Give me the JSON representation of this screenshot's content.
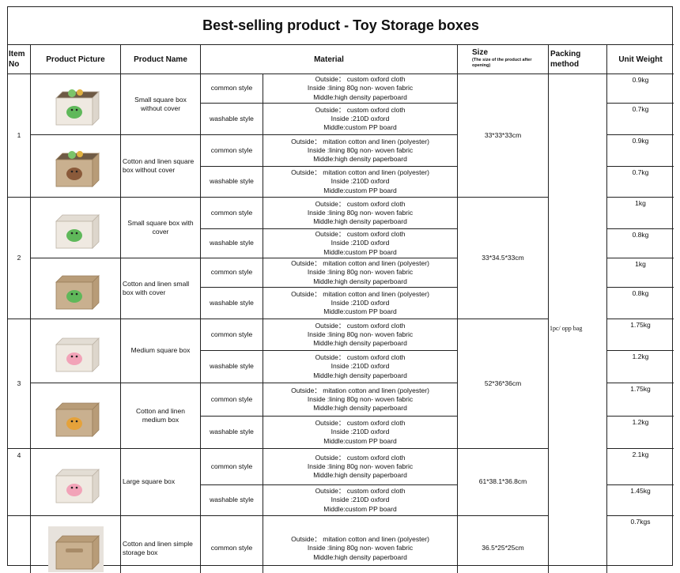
{
  "title": "Best-selling product - Toy Storage boxes",
  "headers": {
    "item_no": "Item No",
    "picture": "Product Picture",
    "name": "Product Name",
    "material": "Material",
    "size": "Size",
    "size_note": "(The size of the product after opening)",
    "packing": "Packing method",
    "weight": "Unit Weight"
  },
  "packing_value": "1pc/ opp bag",
  "items": [
    "1",
    "2",
    "3",
    "4"
  ],
  "sizes": [
    "33*33*33cm",
    "33*34.5*33cm",
    "52*36*36cm",
    "61*38.1*36.8cm",
    "36.5*25*25cm"
  ],
  "products": [
    {
      "name": "Small square box without cover",
      "picture": "dinosaur open box"
    },
    {
      "name": "Cotton and linen square box without cover",
      "picture": "sloth open box"
    },
    {
      "name": "Small square box with cover",
      "picture": "dinosaur lidded box"
    },
    {
      "name": "Cotton and linen small box with cover",
      "picture": "turtle lidded box"
    },
    {
      "name": "Medium square box",
      "picture": "pig lidded box"
    },
    {
      "name": "Cotton and linen medium box",
      "picture": "lion lidded box"
    },
    {
      "name": "Large square box",
      "picture": "elephant lidded box"
    },
    {
      "name": "Cotton and linen simple storage box",
      "picture": "plain lidded box"
    }
  ],
  "rows": [
    {
      "style": "common style",
      "m1": "Outside： custom oxford cloth",
      "m2": "Inside :lining 80g non- woven fabric",
      "m3": "Middle:high density paperboard",
      "weight": "0.9kg"
    },
    {
      "style": "washable style",
      "m1": "Outside： custom oxford cloth",
      "m2": "Inside :210D oxford",
      "m3": "Middle:custom PP board",
      "weight": "0.7kg"
    },
    {
      "style": "common style",
      "m1": "Outside： mitation cotton and linen (polyester)",
      "m2": "Inside :lining 80g non- woven fabric",
      "m3": "Middle:high density paperboard",
      "weight": "0.9kg"
    },
    {
      "style": "washable style",
      "m1": "Outside： mitation cotton and linen (polyester)",
      "m2": "Inside :210D oxford",
      "m3": "Middle:custom PP board",
      "weight": "0.7kg"
    },
    {
      "style": "common style",
      "m1": "Outside： custom oxford cloth",
      "m2": "Inside :lining 80g non- woven fabric",
      "m3": "Middle:high density paperboard",
      "weight": "1kg"
    },
    {
      "style": "washable style",
      "m1": "Outside： custom oxford cloth",
      "m2": "Inside :210D oxford",
      "m3": "Middle:custom PP board",
      "weight": "0.8kg"
    },
    {
      "style": "common style",
      "m1": "Outside： mitation cotton and linen (polyester)",
      "m2": "Inside :lining 80g non- woven fabric",
      "m3": "Middle:high density paperboard",
      "weight": "1kg"
    },
    {
      "style": "washable style",
      "m1": "Outside： mitation cotton and linen (polyester)",
      "m2": "Inside :210D oxford",
      "m3": "Middle:custom PP board",
      "weight": "0.8kg"
    },
    {
      "style": "common style",
      "m1": "Outside： custom oxford cloth",
      "m2": "Inside :lining 80g non- woven fabric",
      "m3": "Middle:high density paperboard",
      "weight": "1.75kg"
    },
    {
      "style": "washable style",
      "m1": "Outside： custom oxford cloth",
      "m2": "Inside :210D oxford",
      "m3": "Middle:high density paperboard",
      "weight": "1.2kg"
    },
    {
      "style": "common style",
      "m1": "Outside： mitation cotton and linen (polyester)",
      "m2": "Inside :lining 80g non- woven fabric",
      "m3": "Middle:high density paperboard",
      "weight": "1.75kg"
    },
    {
      "style": "washable style",
      "m1": "Outside： custom oxford cloth",
      "m2": "Inside :210D oxford",
      "m3": "Middle:custom PP board",
      "weight": "1.2kg"
    },
    {
      "style": "common style",
      "m1": "Outside： custom oxford cloth",
      "m2": "Inside :lining 80g non- woven fabric",
      "m3": "Middle:high density paperboard",
      "weight": "2.1kg"
    },
    {
      "style": "washable style",
      "m1": "Outside： custom oxford cloth",
      "m2": "Inside :210D oxford",
      "m3": "Middle:custom PP board",
      "weight": "1.45kg"
    },
    {
      "style": "common style",
      "m1": "Outside： mitation cotton and linen (polyester)",
      "m2": "Inside :lining 80g non- woven fabric",
      "m3": "Middle:high density paperboard",
      "weight": "0.7kgs"
    }
  ],
  "colors": {
    "border": "#222222",
    "canvas": "#d9c7ad",
    "oxford": "#efe9e1"
  }
}
